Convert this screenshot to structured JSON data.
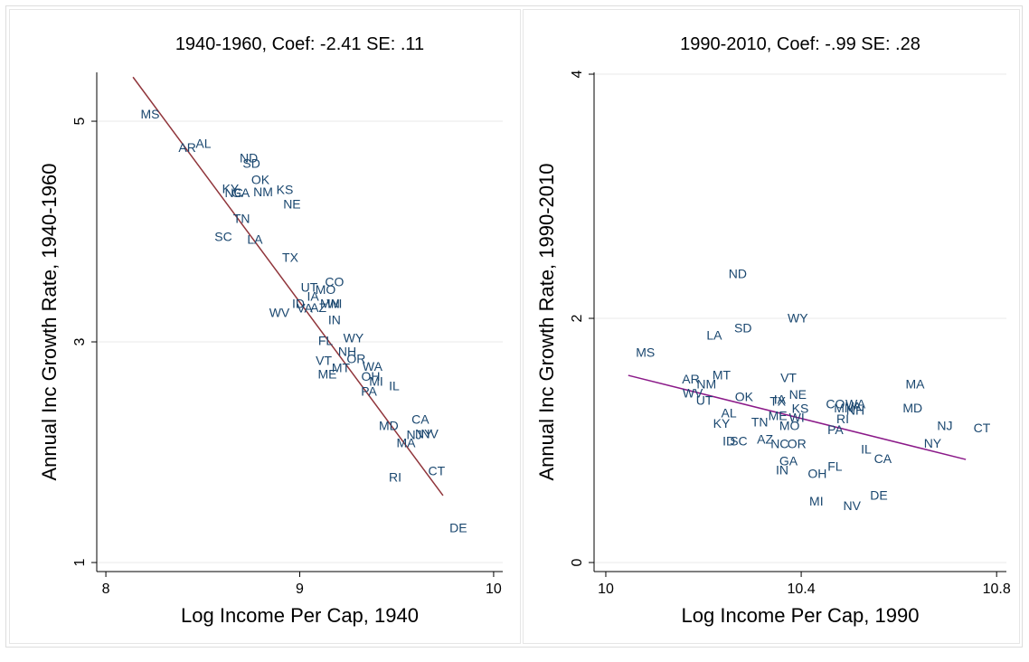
{
  "chart_data": [
    {
      "type": "scatter",
      "title": "1940-1960, Coef: -2.41 SE: .11",
      "xlabel": "Log Income Per Cap, 1940",
      "ylabel": "Annual Inc Growth Rate, 1940-1960",
      "xlim": [
        7.953,
        10.047
      ],
      "ylim": [
        0.918,
        5.443
      ],
      "xticks": [
        8,
        9,
        10
      ],
      "yticks": [
        1,
        3,
        5
      ],
      "grid": true,
      "points": {
        "color": "#1a476f",
        "labels": [
          "MS",
          "AR",
          "AL",
          "ND",
          "SD",
          "OK",
          "KY",
          "NC",
          "GA",
          "NM",
          "KS",
          "NE",
          "TN",
          "SC",
          "LA",
          "TX",
          "UT",
          "CO",
          "MO",
          "IA",
          "ID",
          "AZ",
          "VA",
          "MN",
          "WI",
          "WV",
          "IN",
          "WY",
          "FL",
          "NH",
          "OR",
          "VT",
          "MT",
          "WA",
          "ME",
          "OH",
          "MI",
          "IL",
          "PA",
          "CA",
          "MD",
          "NJ",
          "NY",
          "NV",
          "MA",
          "CT",
          "RI",
          "DE"
        ],
        "x": [
          8.228,
          8.42,
          8.503,
          8.737,
          8.751,
          8.797,
          8.643,
          8.66,
          8.695,
          8.811,
          8.923,
          8.96,
          8.7,
          8.606,
          8.769,
          8.951,
          9.049,
          9.179,
          9.133,
          9.068,
          8.993,
          9.096,
          9.026,
          9.156,
          9.179,
          8.895,
          9.179,
          9.277,
          9.133,
          9.245,
          9.291,
          9.124,
          9.212,
          9.375,
          9.142,
          9.366,
          9.394,
          9.487,
          9.357,
          9.622,
          9.459,
          9.59,
          9.64,
          9.67,
          9.548,
          9.706,
          9.492,
          9.818
        ],
        "y": [
          5.057,
          4.754,
          4.787,
          4.656,
          4.607,
          4.459,
          4.377,
          4.344,
          4.344,
          4.352,
          4.369,
          4.238,
          4.107,
          3.943,
          3.918,
          3.754,
          3.484,
          3.533,
          3.467,
          3.402,
          3.336,
          3.303,
          3.295,
          3.336,
          3.336,
          3.254,
          3.189,
          3.025,
          3.0,
          2.902,
          2.836,
          2.82,
          2.754,
          2.77,
          2.697,
          2.68,
          2.631,
          2.59,
          2.541,
          2.287,
          2.23,
          2.148,
          2.156,
          2.156,
          2.074,
          1.82,
          1.762,
          1.303
        ]
      },
      "fit_line": {
        "color": "#90353b",
        "x": [
          8.14,
          9.739
        ],
        "y": [
          5.4,
          1.607
        ]
      }
    },
    {
      "type": "scatter",
      "title": "1990-2010, Coef: -.99 SE: .28",
      "xlabel": "Log Income Per Cap, 1990",
      "ylabel": "Annual Inc Growth Rate, 1990-2010",
      "xlim": [
        9.976,
        10.82
      ],
      "ylim": [
        -0.074,
        4.015
      ],
      "xticks": [
        10,
        10.4,
        10.8
      ],
      "yticks": [
        0,
        2,
        4
      ],
      "grid": true,
      "points": {
        "color": "#1a476f",
        "labels": [
          "ND",
          "WY",
          "SD",
          "LA",
          "MS",
          "MA",
          "AR",
          "NM",
          "MT",
          "VT",
          "WV",
          "NE",
          "UT",
          "OK",
          "TX",
          "IA",
          "KS",
          "CO",
          "WA",
          "VA",
          "MN",
          "NH",
          "MD",
          "AL",
          "ME",
          "WI",
          "RI",
          "TN",
          "MO",
          "KY",
          "NJ",
          "CT",
          "PA",
          "NY",
          "IL",
          "CA",
          "ID",
          "SC",
          "AZ",
          "NC",
          "OR",
          "GA",
          "FL",
          "IN",
          "OH",
          "DE",
          "MI",
          "NV"
        ],
        "x": [
          10.27,
          10.393,
          10.281,
          10.222,
          10.081,
          10.633,
          10.174,
          10.206,
          10.237,
          10.374,
          10.178,
          10.393,
          10.202,
          10.283,
          10.352,
          10.356,
          10.398,
          10.47,
          10.511,
          10.507,
          10.487,
          10.511,
          10.628,
          10.252,
          10.352,
          10.391,
          10.485,
          10.315,
          10.376,
          10.237,
          10.694,
          10.77,
          10.47,
          10.669,
          10.533,
          10.567,
          10.252,
          10.272,
          10.326,
          10.356,
          10.391,
          10.374,
          10.469,
          10.361,
          10.433,
          10.559,
          10.431,
          10.504
        ],
        "y": [
          2.356,
          1.993,
          1.911,
          1.852,
          1.711,
          1.452,
          1.496,
          1.452,
          1.526,
          1.504,
          1.378,
          1.37,
          1.319,
          1.348,
          1.311,
          1.326,
          1.252,
          1.289,
          1.289,
          1.27,
          1.259,
          1.237,
          1.259,
          1.215,
          1.193,
          1.178,
          1.17,
          1.141,
          1.111,
          1.133,
          1.111,
          1.096,
          1.081,
          0.97,
          0.919,
          0.844,
          0.985,
          0.985,
          1.0,
          0.963,
          0.963,
          0.822,
          0.778,
          0.748,
          0.719,
          0.541,
          0.496,
          0.459
        ]
      },
      "fit_line": {
        "color": "#8b1a89",
        "x": [
          10.046,
          10.737
        ],
        "y": [
          1.533,
          0.844
        ]
      }
    }
  ]
}
